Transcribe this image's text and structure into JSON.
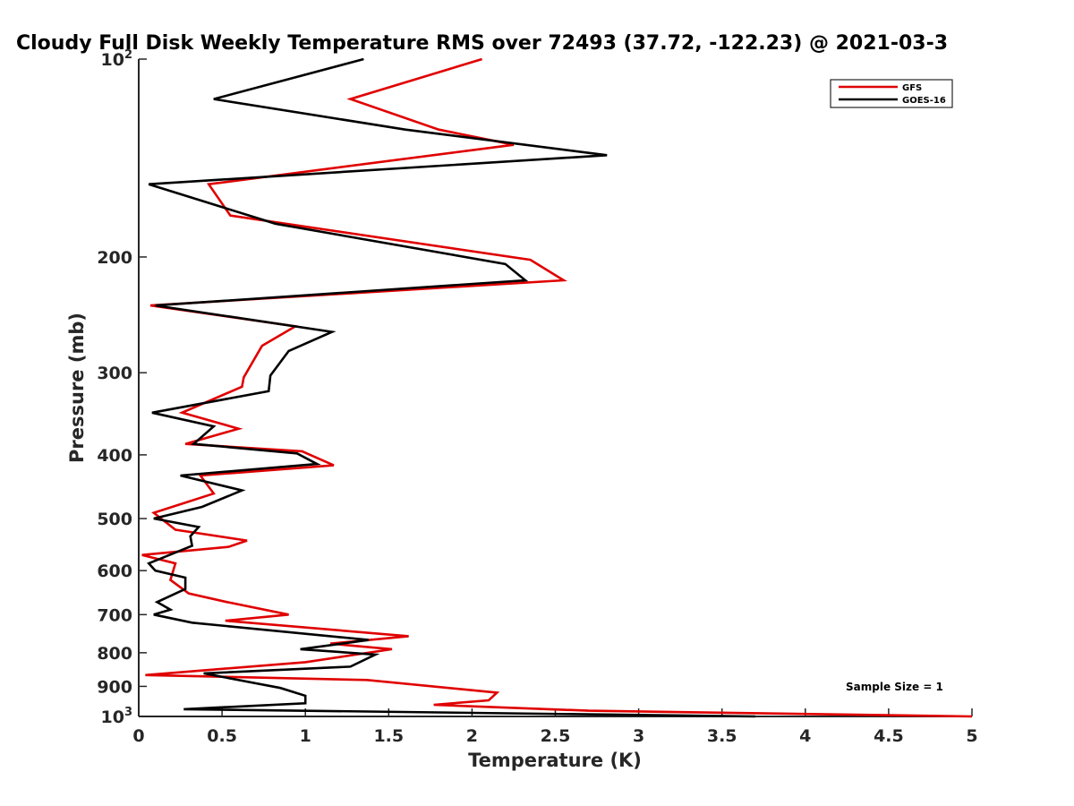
{
  "chart_data": {
    "type": "line",
    "title": "Cloudy Full Disk Weekly Temperature RMS over 72493 (37.72, -122.23) @ 2021-03-3",
    "xlabel": "Temperature (K)",
    "ylabel": "Pressure (mb)",
    "xlim": [
      0,
      5
    ],
    "ylim": [
      1000,
      100
    ],
    "y_scale": "log",
    "y_reversed": true,
    "grid": false,
    "legend_position": "top-right",
    "x_ticks": [
      0,
      0.5,
      1,
      1.5,
      2,
      2.5,
      3,
      3.5,
      4,
      4.5,
      5
    ],
    "x_tick_labels": [
      "0",
      "0.5",
      "1",
      "1.5",
      "2",
      "2.5",
      "3",
      "3.5",
      "4",
      "4.5",
      "5"
    ],
    "y_ticks": [
      {
        "value": 100,
        "base": "10",
        "exp": "2"
      },
      {
        "value": 200,
        "label": "200"
      },
      {
        "value": 300,
        "label": "300"
      },
      {
        "value": 400,
        "label": "400"
      },
      {
        "value": 500,
        "label": "500"
      },
      {
        "value": 600,
        "label": "600"
      },
      {
        "value": 700,
        "label": "700"
      },
      {
        "value": 800,
        "label": "800"
      },
      {
        "value": 900,
        "label": "900"
      },
      {
        "value": 1000,
        "base": "10",
        "exp": "3"
      }
    ],
    "annotation": "Sample Size = 1",
    "series": [
      {
        "name": "GFS",
        "color": "#e00000",
        "x": [
          2.06,
          1.27,
          1.8,
          2.25,
          0.42,
          0.55,
          2.35,
          2.55,
          0.07,
          0.94,
          0.74,
          0.63,
          0.62,
          0.26,
          0.6,
          0.28,
          0.98,
          1.17,
          0.37,
          0.45,
          0.09,
          0.22,
          0.65,
          0.54,
          0.02,
          0.22,
          0.19,
          0.3,
          0.53,
          0.9,
          0.52,
          1.62,
          1.15,
          1.52,
          1.0,
          0.04,
          1.37,
          2.15,
          2.1,
          1.77,
          2.7,
          5.0
        ],
        "y": [
          100,
          115,
          128,
          135,
          155,
          173,
          202,
          217,
          237,
          255,
          273,
          305,
          315,
          345,
          365,
          385,
          395,
          415,
          430,
          458,
          490,
          520,
          540,
          552,
          568,
          585,
          620,
          650,
          670,
          700,
          715,
          755,
          775,
          790,
          827,
          865,
          880,
          920,
          945,
          960,
          980,
          1000
        ],
        "points": [
          [
            2.06,
            100
          ],
          [
            1.27,
            115
          ],
          [
            1.8,
            128
          ],
          [
            2.25,
            135
          ],
          [
            0.42,
            155
          ],
          [
            0.55,
            173
          ],
          [
            2.35,
            202
          ],
          [
            2.55,
            217
          ],
          [
            0.07,
            237
          ],
          [
            0.94,
            255
          ],
          [
            0.74,
            273
          ],
          [
            0.63,
            305
          ],
          [
            0.62,
            315
          ],
          [
            0.26,
            345
          ],
          [
            0.6,
            365
          ],
          [
            0.28,
            385
          ],
          [
            0.98,
            395
          ],
          [
            1.17,
            415
          ],
          [
            0.37,
            430
          ],
          [
            0.45,
            458
          ],
          [
            0.09,
            490
          ],
          [
            0.22,
            520
          ],
          [
            0.65,
            540
          ],
          [
            0.54,
            552
          ],
          [
            0.02,
            568
          ],
          [
            0.22,
            585
          ],
          [
            0.19,
            620
          ],
          [
            0.3,
            650
          ],
          [
            0.53,
            670
          ],
          [
            0.9,
            700
          ],
          [
            0.52,
            715
          ],
          [
            1.62,
            755
          ],
          [
            1.15,
            775
          ],
          [
            1.52,
            790
          ],
          [
            1.0,
            827
          ],
          [
            0.04,
            865
          ],
          [
            1.37,
            880
          ],
          [
            2.15,
            920
          ],
          [
            2.1,
            945
          ],
          [
            1.77,
            960
          ],
          [
            2.7,
            980
          ],
          [
            5.0,
            1000
          ]
        ]
      },
      {
        "name": "GOES-16",
        "color": "#000000",
        "x": [
          1.35,
          0.45,
          1.6,
          2.81,
          0.06,
          0.82,
          2.2,
          2.32,
          0.1,
          1.16,
          0.9,
          0.79,
          0.78,
          0.08,
          0.45,
          0.33,
          0.95,
          1.07,
          0.25,
          0.62,
          0.38,
          0.09,
          0.36,
          0.31,
          0.32,
          0.06,
          0.1,
          0.28,
          0.28,
          0.11,
          0.19,
          0.09,
          0.32,
          1.38,
          0.97,
          1.42,
          1.27,
          0.39,
          0.85,
          1.0,
          1.0,
          0.27,
          3.7
        ],
        "y": [
          100,
          115,
          128,
          140,
          155,
          178,
          205,
          217,
          237,
          260,
          278,
          303,
          320,
          345,
          362,
          385,
          398,
          413,
          430,
          453,
          480,
          500,
          515,
          532,
          550,
          585,
          600,
          615,
          640,
          670,
          688,
          700,
          720,
          765,
          790,
          805,
          840,
          860,
          905,
          930,
          955,
          975,
          1000
        ],
        "points": [
          [
            1.35,
            100
          ],
          [
            0.45,
            115
          ],
          [
            1.6,
            128
          ],
          [
            2.81,
            140
          ],
          [
            0.06,
            155
          ],
          [
            0.82,
            178
          ],
          [
            2.2,
            205
          ],
          [
            2.32,
            217
          ],
          [
            0.1,
            237
          ],
          [
            1.16,
            260
          ],
          [
            0.9,
            278
          ],
          [
            0.79,
            303
          ],
          [
            0.78,
            320
          ],
          [
            0.08,
            345
          ],
          [
            0.45,
            362
          ],
          [
            0.33,
            385
          ],
          [
            0.95,
            398
          ],
          [
            1.07,
            413
          ],
          [
            0.25,
            430
          ],
          [
            0.62,
            453
          ],
          [
            0.38,
            480
          ],
          [
            0.09,
            500
          ],
          [
            0.36,
            515
          ],
          [
            0.31,
            532
          ],
          [
            0.32,
            550
          ],
          [
            0.06,
            585
          ],
          [
            0.1,
            600
          ],
          [
            0.28,
            615
          ],
          [
            0.28,
            640
          ],
          [
            0.11,
            670
          ],
          [
            0.19,
            688
          ],
          [
            0.09,
            700
          ],
          [
            0.32,
            720
          ],
          [
            1.38,
            765
          ],
          [
            0.97,
            790
          ],
          [
            1.42,
            805
          ],
          [
            1.27,
            840
          ],
          [
            0.39,
            860
          ],
          [
            0.85,
            905
          ],
          [
            1.0,
            930
          ],
          [
            1.0,
            955
          ],
          [
            0.27,
            975
          ],
          [
            3.7,
            1000
          ]
        ]
      }
    ]
  }
}
